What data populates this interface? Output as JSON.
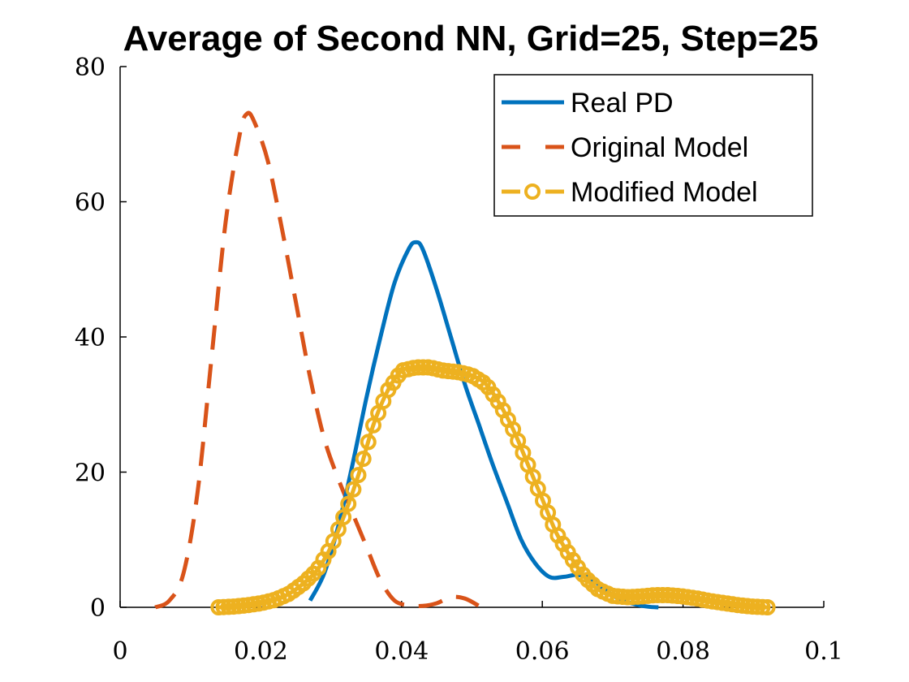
{
  "chart_data": {
    "type": "line",
    "title": "Average of Second NN, Grid=25, Step=25",
    "xlabel": "",
    "ylabel": "",
    "xlim": [
      0,
      0.1
    ],
    "ylim": [
      0,
      80
    ],
    "xticks": [
      0,
      0.02,
      0.04,
      0.06,
      0.08,
      0.1
    ],
    "xtick_labels": [
      "0",
      "0.02",
      "0.04",
      "0.06",
      "0.08",
      "0.1"
    ],
    "yticks": [
      0,
      20,
      40,
      60,
      80
    ],
    "ytick_labels": [
      "0",
      "20",
      "40",
      "60",
      "80"
    ],
    "grid": false,
    "legend_position": "top-right",
    "series": [
      {
        "name": "Real PD",
        "color": "#0072BD",
        "style": "solid",
        "x": [
          0.027,
          0.029,
          0.031,
          0.033,
          0.035,
          0.037,
          0.039,
          0.041,
          0.042,
          0.043,
          0.045,
          0.047,
          0.049,
          0.051,
          0.053,
          0.055,
          0.057,
          0.059,
          0.061,
          0.063,
          0.065,
          0.067,
          0.069,
          0.071,
          0.073,
          0.075,
          0.0765
        ],
        "y": [
          1,
          5,
          12,
          21,
          31,
          40,
          48,
          53,
          54,
          53,
          47,
          40,
          33,
          27,
          21,
          15.5,
          10,
          6.5,
          4.5,
          4.5,
          4.8,
          4.2,
          2.5,
          1.2,
          0.5,
          0.1,
          0
        ]
      },
      {
        "name": "Original Model",
        "color": "#D95319",
        "style": "dashed",
        "x": [
          0.005,
          0.007,
          0.009,
          0.011,
          0.013,
          0.015,
          0.017,
          0.018,
          0.019,
          0.021,
          0.023,
          0.025,
          0.027,
          0.029,
          0.031,
          0.033,
          0.035,
          0.037,
          0.039,
          0.041,
          0.043,
          0.045,
          0.047,
          0.049,
          0.051
        ],
        "y": [
          0,
          1,
          5,
          17,
          37,
          57,
          70,
          73,
          72,
          66,
          56,
          45,
          34,
          25,
          19,
          14,
          9,
          4,
          1,
          0.3,
          0.2,
          0.6,
          1.5,
          1.3,
          0.2
        ]
      },
      {
        "name": "Modified Model",
        "color": "#EDB120",
        "style": "dashed-circle",
        "x": [
          0.014,
          0.016,
          0.018,
          0.02,
          0.022,
          0.024,
          0.026,
          0.028,
          0.03,
          0.032,
          0.034,
          0.036,
          0.038,
          0.04,
          0.042,
          0.044,
          0.046,
          0.048,
          0.05,
          0.052,
          0.054,
          0.056,
          0.058,
          0.06,
          0.062,
          0.064,
          0.066,
          0.068,
          0.07,
          0.072,
          0.074,
          0.076,
          0.078,
          0.08,
          0.082,
          0.084,
          0.086,
          0.088,
          0.09,
          0.092
        ],
        "y": [
          0,
          0.1,
          0.3,
          0.6,
          1.1,
          2,
          3.5,
          5.5,
          9,
          14,
          20,
          27,
          32,
          35,
          35.5,
          35.5,
          35,
          34.8,
          34.3,
          33,
          30,
          26,
          21,
          16,
          11,
          7.5,
          4.5,
          2.6,
          1.7,
          1.5,
          1.6,
          1.8,
          1.8,
          1.6,
          1.3,
          0.9,
          0.6,
          0.3,
          0.1,
          0
        ]
      }
    ]
  }
}
